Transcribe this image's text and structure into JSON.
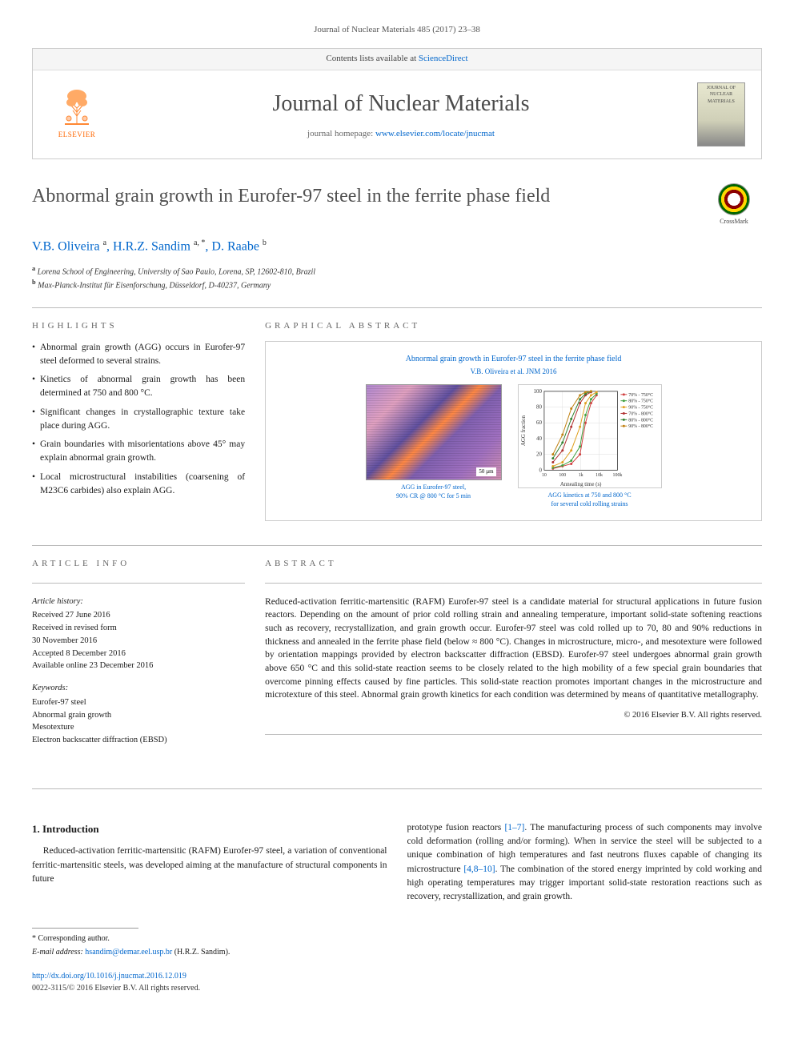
{
  "header_citation": "Journal of Nuclear Materials 485 (2017) 23–38",
  "contents_text": "Contents lists available at ",
  "contents_link": "ScienceDirect",
  "journal_name": "Journal of Nuclear Materials",
  "journal_home_text": "journal homepage: ",
  "journal_home_link": "www.elsevier.com/locate/jnucmat",
  "elsevier_label": "ELSEVIER",
  "journal_cover_text": "JOURNAL OF NUCLEAR MATERIALS",
  "article_title": "Abnormal grain growth in Eurofer-97 steel in the ferrite phase field",
  "crossmark_label": "CrossMark",
  "authors_html": "V.B. Oliveira <sup>a</sup>, H.R.Z. Sandim <sup>a, *</sup>, D. Raabe <sup>b</sup>",
  "affiliations": [
    {
      "sup": "a",
      "text": "Lorena School of Engineering, University of Sao Paulo, Lorena, SP, 12602-810, Brazil"
    },
    {
      "sup": "b",
      "text": "Max-Planck-Institut für Eisenforschung, Düsseldorf, D-40237, Germany"
    }
  ],
  "highlights_label": "HIGHLIGHTS",
  "highlights": [
    "Abnormal grain growth (AGG) occurs in Eurofer-97 steel deformed to several strains.",
    "Kinetics of abnormal grain growth has been determined at 750 and 800 °C.",
    "Significant changes in crystallographic texture take place during AGG.",
    "Grain boundaries with misorientations above 45° may explain abnormal grain growth.",
    "Local microstructural instabilities (coarsening of M23C6 carbides) also explain AGG."
  ],
  "graphical_label": "GRAPHICAL ABSTRACT",
  "ga_title": "Abnormal grain growth in Eurofer-97 steel in the ferrite phase field",
  "ga_subtitle": "V.B. Oliveira et al. JNM 2016",
  "ga_caption1_line1": "AGG in Eurofer-97 steel,",
  "ga_caption1_line2": "90% CR @ 800 °C for 5 min",
  "ga_caption2_line1": "AGG kinetics at 750 and 800 °C",
  "ga_caption2_line2": "for several cold rolling strains",
  "chart": {
    "xlabel": "Annealing time (s)",
    "ylabel": "AGG fraction",
    "xlim": [
      10,
      100000
    ],
    "ylim": [
      0,
      100
    ],
    "xticks": [
      10,
      100,
      1000,
      10000,
      100000
    ],
    "yticks": [
      0,
      20,
      40,
      60,
      80,
      100
    ],
    "xscale": "log",
    "series": [
      {
        "label": "70% - 750°C",
        "color": "#d04040",
        "marker": "square",
        "x": [
          30,
          100,
          300,
          900,
          1800,
          3600,
          7200
        ],
        "y": [
          2,
          5,
          8,
          20,
          60,
          85,
          95
        ]
      },
      {
        "label": "80% - 750°C",
        "color": "#40a040",
        "marker": "triangle",
        "x": [
          30,
          100,
          300,
          900,
          1800,
          3600,
          7200
        ],
        "y": [
          3,
          6,
          12,
          30,
          70,
          90,
          97
        ]
      },
      {
        "label": "90% - 750°C",
        "color": "#e0a020",
        "marker": "diamond",
        "x": [
          30,
          100,
          300,
          900,
          1800,
          3600,
          7200
        ],
        "y": [
          5,
          10,
          25,
          55,
          85,
          95,
          99
        ]
      },
      {
        "label": "70% - 800°C",
        "color": "#b03030",
        "marker": "square",
        "x": [
          30,
          100,
          300,
          900,
          1800,
          3600
        ],
        "y": [
          10,
          25,
          55,
          85,
          95,
          99
        ]
      },
      {
        "label": "80% - 800°C",
        "color": "#308030",
        "marker": "triangle",
        "x": [
          30,
          100,
          300,
          900,
          1800,
          3600
        ],
        "y": [
          15,
          35,
          65,
          90,
          97,
          100
        ]
      },
      {
        "label": "90% - 800°C",
        "color": "#c08010",
        "marker": "diamond",
        "x": [
          30,
          100,
          300,
          900,
          1800,
          3600
        ],
        "y": [
          20,
          45,
          78,
          95,
          99,
          100
        ]
      }
    ],
    "legend_fontsize": 6,
    "axis_fontsize": 7,
    "grid_color": "#dddddd",
    "background": "#ffffff"
  },
  "article_info_label": "ARTICLE INFO",
  "history_label": "Article history:",
  "history": [
    "Received 27 June 2016",
    "Received in revised form",
    "30 November 2016",
    "Accepted 8 December 2016",
    "Available online 23 December 2016"
  ],
  "keywords_label": "Keywords:",
  "keywords": [
    "Eurofer-97 steel",
    "Abnormal grain growth",
    "Mesotexture",
    "Electron backscatter diffraction (EBSD)"
  ],
  "abstract_label": "ABSTRACT",
  "abstract_text": "Reduced-activation ferritic-martensitic (RAFM) Eurofer-97 steel is a candidate material for structural applications in future fusion reactors. Depending on the amount of prior cold rolling strain and annealing temperature, important solid-state softening reactions such as recovery, recrystallization, and grain growth occur. Eurofer-97 steel was cold rolled up to 70, 80 and 90% reductions in thickness and annealed in the ferrite phase field (below ≈ 800 °C). Changes in microstructure, micro-, and mesotexture were followed by orientation mappings provided by electron backscatter diffraction (EBSD). Eurofer-97 steel undergoes abnormal grain growth above 650 °C and this solid-state reaction seems to be closely related to the high mobility of a few special grain boundaries that overcome pinning effects caused by fine particles. This solid-state reaction promotes important changes in the microstructure and microtexture of this steel. Abnormal grain growth kinetics for each condition was determined by means of quantitative metallography.",
  "copyright": "© 2016 Elsevier B.V. All rights reserved.",
  "intro_heading": "1. Introduction",
  "intro_p1": "Reduced-activation ferritic-martensitic (RAFM) Eurofer-97 steel, a variation of conventional ferritic-martensitic steels, was developed aiming at the manufacture of structural components in future",
  "intro_p2a": "prototype fusion reactors ",
  "intro_cite1": "[1–7]",
  "intro_p2b": ". The manufacturing process of such components may involve cold deformation (rolling and/or forming). When in service the steel will be subjected to a unique combination of high temperatures and fast neutrons fluxes capable of changing its microstructure ",
  "intro_cite2": "[4,8–10]",
  "intro_p2c": ". The combination of the stored energy imprinted by cold working and high operating temperatures may trigger important solid-state restoration reactions such as recovery, recrystallization, and grain growth.",
  "corr_label": "* Corresponding author.",
  "email_label": "E-mail address: ",
  "email": "hsandim@demar.eel.usp.br",
  "email_name": " (H.R.Z. Sandim).",
  "doi": "http://dx.doi.org/10.1016/j.jnucmat.2016.12.019",
  "issn": "0022-3115/© 2016 Elsevier B.V. All rights reserved.",
  "colors": {
    "link": "#0066cc",
    "text": "#1a1a1a",
    "label": "#666666",
    "elsevier": "#ff6600"
  }
}
